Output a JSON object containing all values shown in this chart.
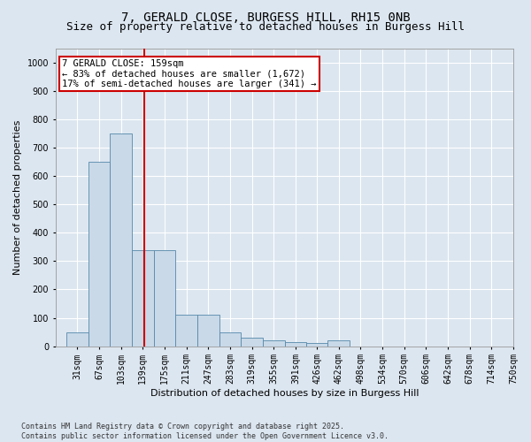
{
  "title_line1": "7, GERALD CLOSE, BURGESS HILL, RH15 0NB",
  "title_line2": "Size of property relative to detached houses in Burgess Hill",
  "xlabel": "Distribution of detached houses by size in Burgess Hill",
  "ylabel": "Number of detached properties",
  "bin_labels": [
    "31sqm",
    "67sqm",
    "103sqm",
    "139sqm",
    "175sqm",
    "211sqm",
    "247sqm",
    "283sqm",
    "319sqm",
    "355sqm",
    "391sqm",
    "426sqm",
    "462sqm",
    "498sqm",
    "534sqm",
    "570sqm",
    "606sqm",
    "642sqm",
    "678sqm",
    "714sqm",
    "750sqm"
  ],
  "bin_left_edges": [
    31,
    67,
    103,
    139,
    175,
    211,
    247,
    283,
    319,
    355,
    391,
    426,
    462,
    498,
    534,
    570,
    606,
    642,
    678,
    714
  ],
  "values": [
    50,
    650,
    750,
    340,
    340,
    110,
    110,
    50,
    30,
    20,
    15,
    10,
    20,
    0,
    0,
    0,
    0,
    0,
    0,
    0
  ],
  "bar_color": "#c9d9e8",
  "bar_edge_color": "#5588aa",
  "bar_linewidth": 0.6,
  "vline_x": 159,
  "vline_color": "#cc0000",
  "vline_linewidth": 1.5,
  "annotation_text_line1": "7 GERALD CLOSE: 159sqm",
  "annotation_text_line2": "← 83% of detached houses are smaller (1,672)",
  "annotation_text_line3": "17% of semi-detached houses are larger (341) →",
  "annotation_box_edgecolor": "#cc0000",
  "annotation_box_facecolor": "#ffffff",
  "ylim": [
    0,
    1050
  ],
  "yticks": [
    0,
    100,
    200,
    300,
    400,
    500,
    600,
    700,
    800,
    900,
    1000
  ],
  "xlim_left": 13,
  "xlim_right": 768,
  "background_color": "#dce6f0",
  "grid_color": "#ffffff",
  "footnote": "Contains HM Land Registry data © Crown copyright and database right 2025.\nContains public sector information licensed under the Open Government Licence v3.0.",
  "title_fontsize": 10,
  "subtitle_fontsize": 9,
  "axis_label_fontsize": 8,
  "tick_fontsize": 7,
  "annotation_fontsize": 7.5,
  "footnote_fontsize": 6
}
